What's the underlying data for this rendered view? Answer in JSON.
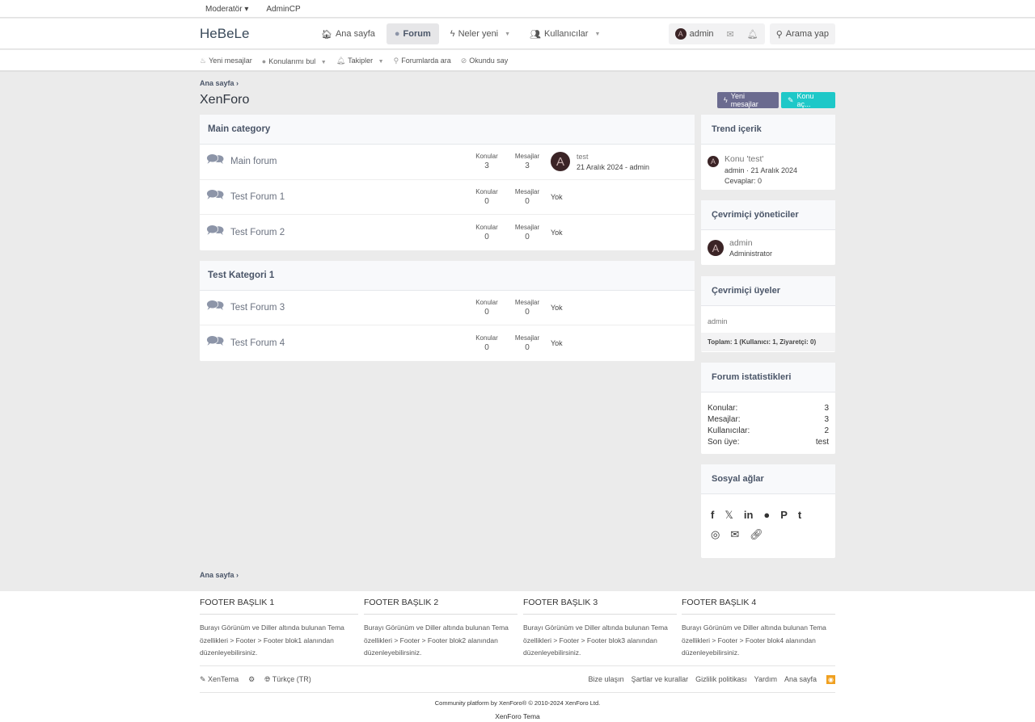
{
  "topbar": {
    "moderator": "Moderatör",
    "admincp": "AdminCP"
  },
  "header": {
    "logo": "HeBeLe",
    "nav": [
      {
        "label": "Ana sayfa",
        "icon": "home-icon"
      },
      {
        "label": "Forum",
        "icon": "comments-icon",
        "active": true
      },
      {
        "label": "Neler yeni",
        "icon": "bolt-icon"
      },
      {
        "label": "Kullanıcılar",
        "icon": "users-icon"
      }
    ],
    "user": "admin",
    "avatar_letter": "A",
    "search": "Arama yap"
  },
  "subnav": [
    "Yeni mesajlar",
    "Konularımı bul",
    "Takipler",
    "Forumlarda ara",
    "Okundu say"
  ],
  "breadcrumb": "Ana sayfa",
  "page_title": "XenForo",
  "buttons": {
    "new_posts": "Yeni mesajlar",
    "new_thread": "Konu aç...",
    "new_posts_color": "#6b6b8f",
    "new_thread_color": "#1ec8c8"
  },
  "stat_labels": {
    "threads": "Konular",
    "messages": "Mesajlar"
  },
  "categories": [
    {
      "title": "Main category",
      "forums": [
        {
          "name": "Main forum",
          "threads": "3",
          "messages": "3",
          "last_title": "test",
          "last_meta": "21 Aralık 2024 - admin"
        },
        {
          "name": "Test Forum 1",
          "threads": "0",
          "messages": "0",
          "none": "Yok"
        },
        {
          "name": "Test Forum 2",
          "threads": "0",
          "messages": "0",
          "none": "Yok"
        }
      ]
    },
    {
      "title": "Test Kategori 1",
      "forums": [
        {
          "name": "Test Forum 3",
          "threads": "0",
          "messages": "0",
          "none": "Yok"
        },
        {
          "name": "Test Forum 4",
          "threads": "0",
          "messages": "0",
          "none": "Yok"
        }
      ]
    }
  ],
  "sidebar": {
    "trend": {
      "title": "Trend içerik",
      "item": "Konu 'test'",
      "meta": "admin · 21 Aralık 2024",
      "replies": "Cevaplar: 0"
    },
    "staff": {
      "title": "Çevrimiçi yöneticiler",
      "name": "admin",
      "role": "Administrator"
    },
    "online": {
      "title": "Çevrimiçi üyeler",
      "user": "admin",
      "total": "Toplam: 1 (Kullanıcı: 1, Ziyaretçi: 0)"
    },
    "stats": {
      "title": "Forum istatistikleri",
      "rows": [
        {
          "k": "Konular:",
          "v": "3"
        },
        {
          "k": "Mesajlar:",
          "v": "3"
        },
        {
          "k": "Kullanıcılar:",
          "v": "2"
        },
        {
          "k": "Son üye:",
          "v": "test"
        }
      ]
    },
    "social": {
      "title": "Sosyal ağlar"
    }
  },
  "footer": {
    "cols": [
      {
        "title": "FOOTER BAŞLIK 1",
        "text": "Burayı Görünüm ve Diller altında bulunan Tema özellikleri > Footer > Footer blok1 alanından düzenleyebilirsiniz."
      },
      {
        "title": "FOOTER BAŞLIK 2",
        "text": "Burayı Görünüm ve Diller altında bulunan Tema özellikleri > Footer > Footer blok2 alanından düzenleyebilirsiniz."
      },
      {
        "title": "FOOTER BAŞLIK 3",
        "text": "Burayı Görünüm ve Diller altında bulunan Tema özellikleri > Footer > Footer blok3 alanından düzenleyebilirsiniz."
      },
      {
        "title": "FOOTER BAŞLIK 4",
        "text": "Burayı Görünüm ve Diller altında bulunan Tema özellikleri > Footer > Footer blok4 alanından düzenleyebilirsiniz."
      }
    ],
    "style": "XenTema",
    "language": "Türkçe (TR)",
    "links": [
      "Bize ulaşın",
      "Şartlar ve kurallar",
      "Gizlilik politikası",
      "Yardım",
      "Ana sayfa"
    ],
    "copyright": "Community platform by XenForo® © 2010-2024 XenForo Ltd.",
    "theme": "XenForo Tema"
  }
}
